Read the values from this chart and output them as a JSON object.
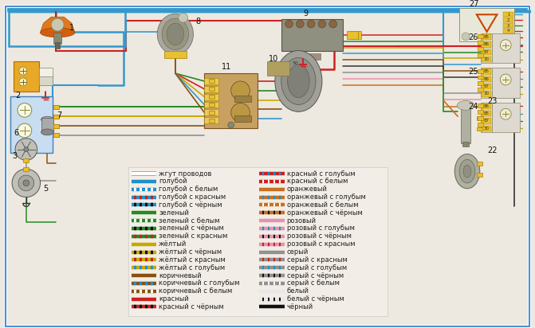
{
  "bg_color": "#ede8e0",
  "border_color": "#4a90d9",
  "legend_left": [
    {
      "label": "жгут проводов",
      "colors": [
        "#ffffff"
      ],
      "border": true
    },
    {
      "label": "голубой",
      "colors": [
        "#2090c8"
      ]
    },
    {
      "label": "голубой с белым",
      "colors": [
        "#2090c8",
        "#ffffff"
      ]
    },
    {
      "label": "голубой с красным",
      "colors": [
        "#2090c8",
        "#cc2020"
      ]
    },
    {
      "label": "голубой с чёрным",
      "colors": [
        "#2090c8",
        "#111111"
      ]
    },
    {
      "label": "зеленый",
      "colors": [
        "#228b22"
      ]
    },
    {
      "label": "зеленый с белым",
      "colors": [
        "#228b22",
        "#ffffff"
      ]
    },
    {
      "label": "зеленый с чёрным",
      "colors": [
        "#228b22",
        "#111111"
      ]
    },
    {
      "label": "зеленый с красным",
      "colors": [
        "#228b22",
        "#cc2020"
      ]
    },
    {
      "label": "жёлтый",
      "colors": [
        "#c8a800"
      ]
    },
    {
      "label": "жёлтый с чёрным",
      "colors": [
        "#c8a800",
        "#111111"
      ]
    },
    {
      "label": "жёлтый с красным",
      "colors": [
        "#c8a800",
        "#cc2020"
      ]
    },
    {
      "label": "жёлтый с голубым",
      "colors": [
        "#c8a800",
        "#2090c8"
      ]
    },
    {
      "label": "коричневый",
      "colors": [
        "#8b5010"
      ]
    },
    {
      "label": "коричневый с голубым",
      "colors": [
        "#8b5010",
        "#2090c8"
      ]
    },
    {
      "label": "коричневый с белым",
      "colors": [
        "#8b5010",
        "#ffffff"
      ]
    },
    {
      "label": "красный",
      "colors": [
        "#cc2020"
      ]
    },
    {
      "label": "красный с чёрным",
      "colors": [
        "#cc2020",
        "#111111"
      ]
    }
  ],
  "legend_right": [
    {
      "label": "красный с голубым",
      "colors": [
        "#cc2020",
        "#2090c8"
      ]
    },
    {
      "label": "красный с белым",
      "colors": [
        "#cc2020",
        "#ffffff"
      ]
    },
    {
      "label": "оранжевый",
      "colors": [
        "#c87020"
      ]
    },
    {
      "label": "оранжевый с голубым",
      "colors": [
        "#c87020",
        "#2090c8"
      ]
    },
    {
      "label": "оранжевый с белым",
      "colors": [
        "#c87020",
        "#ffffff"
      ]
    },
    {
      "label": "оранжевый с чёрным",
      "colors": [
        "#c87020",
        "#111111"
      ]
    },
    {
      "label": "розовый",
      "colors": [
        "#e890b0"
      ]
    },
    {
      "label": "розовый с голубым",
      "colors": [
        "#e890b0",
        "#2090c8"
      ]
    },
    {
      "label": "розовый с чёрным",
      "colors": [
        "#e890b0",
        "#111111"
      ]
    },
    {
      "label": "розовый с красным",
      "colors": [
        "#e890b0",
        "#cc2020"
      ]
    },
    {
      "label": "серый",
      "colors": [
        "#909090"
      ]
    },
    {
      "label": "серый с красным",
      "colors": [
        "#909090",
        "#cc2020"
      ]
    },
    {
      "label": "серый с голубым",
      "colors": [
        "#909090",
        "#2090c8"
      ]
    },
    {
      "label": "серый с чёрным",
      "colors": [
        "#909090",
        "#111111"
      ]
    },
    {
      "label": "серый с белым",
      "colors": [
        "#909090",
        "#ffffff"
      ]
    },
    {
      "label": "белый",
      "colors": [
        "#e8e8e8"
      ]
    },
    {
      "label": "белый с чёрным",
      "colors": [
        "#e8e8e8",
        "#111111"
      ]
    },
    {
      "label": "чёрный",
      "colors": [
        "#111111"
      ]
    }
  ],
  "font_size_legend": 6.0,
  "font_size_numbers": 7.0,
  "cyan_wire": "#3399cc",
  "red_wire": "#cc2222",
  "green_wire": "#228b22",
  "yellow_wire": "#c8a800",
  "brown_wire": "#8b5010",
  "dark_wire": "#333333",
  "white_wire": "#e8e8e8",
  "pink_wire": "#e890b0",
  "orange_wire": "#c87020",
  "grey_wire": "#909090",
  "yellow_conn": "#e8c030",
  "relay_tan": "#c8a060",
  "relay_border": "#7a5020"
}
